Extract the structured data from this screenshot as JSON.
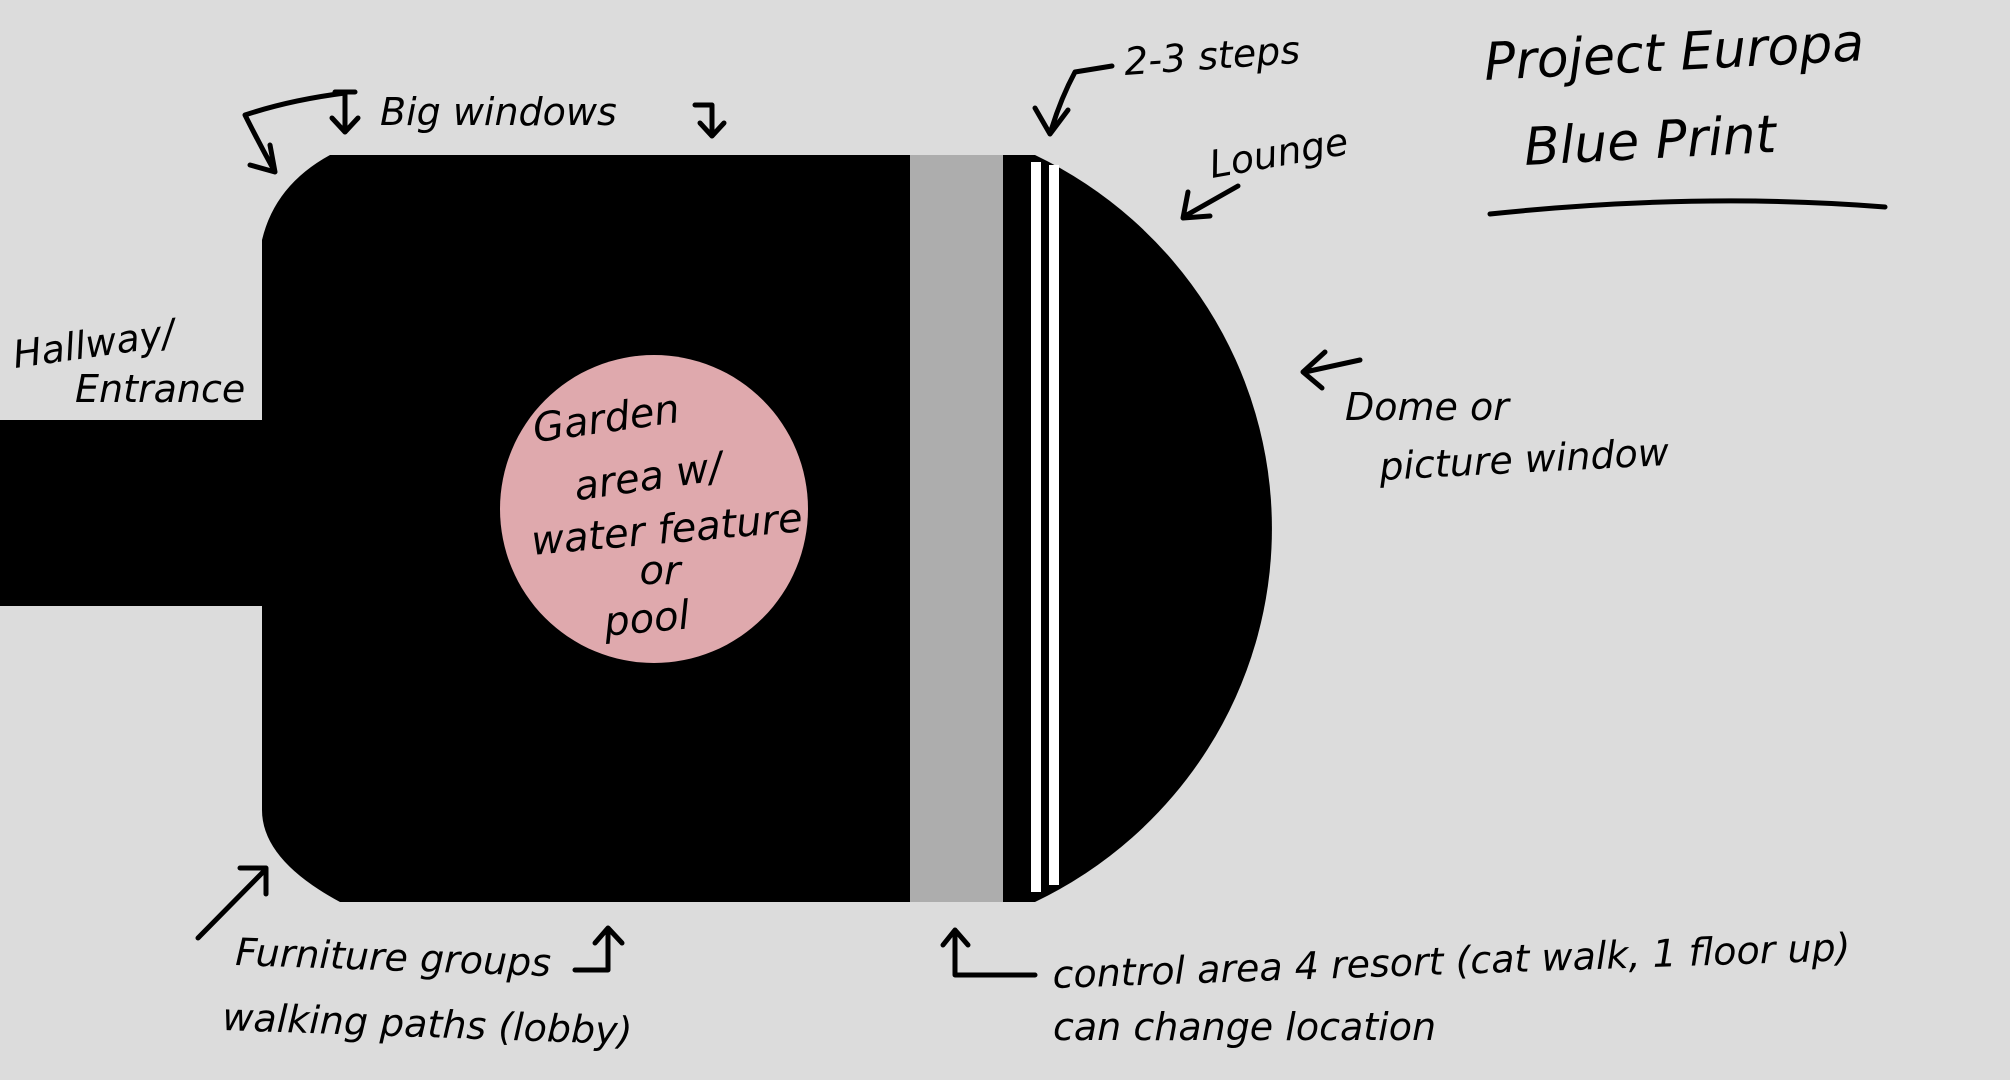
{
  "title": {
    "line1": "Project Europa",
    "line2": "Blue Print"
  },
  "labels": {
    "big_windows": "Big windows",
    "steps": "2-3 steps",
    "lounge": "Lounge",
    "hallway_line1": "Hallway/",
    "hallway_line2": "Entrance",
    "dome_line1": "Dome or",
    "dome_line2": "picture window",
    "furniture_line1": "Furniture groups",
    "furniture_line2": "walking paths (lobby)",
    "control_line1": "control area 4 resort (cat walk, 1 floor up)",
    "control_line2": "can change location"
  },
  "garden": {
    "line1": "Garden",
    "line2": "area w/",
    "line3": "water feature",
    "line4": "or",
    "line5": "pool"
  },
  "colors": {
    "background": "#dcdcdc",
    "floor": "#000000",
    "catwalk": "#adadad",
    "garden": "#dfa9ad",
    "rail": "#ffffff"
  }
}
